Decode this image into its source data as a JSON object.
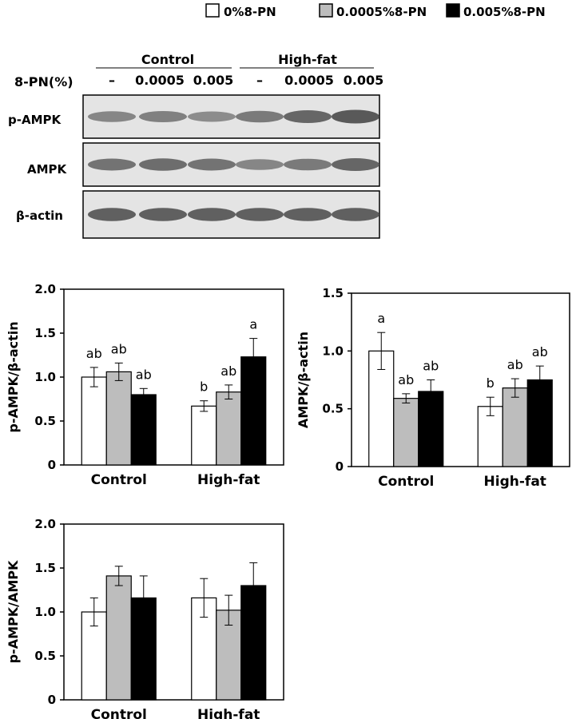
{
  "legend": {
    "items": [
      {
        "label": "0%8-PN",
        "color": "#ffffff"
      },
      {
        "label": "0.0005%8-PN",
        "color": "#bdbdbd"
      },
      {
        "label": "0.005%8-PN",
        "color": "#000000"
      }
    ]
  },
  "blot": {
    "group_headers": [
      "Control",
      "High-fat"
    ],
    "dose_label": "8-PN(%)",
    "doses": [
      "–",
      "0.0005",
      "0.005",
      "–",
      "0.0005",
      "0.005"
    ],
    "rows": [
      {
        "label": "p-AMPK",
        "band_intensity": [
          0.55,
          0.6,
          0.5,
          0.65,
          0.8,
          0.9
        ]
      },
      {
        "label": "AMPK",
        "band_intensity": [
          0.7,
          0.75,
          0.7,
          0.55,
          0.65,
          0.8
        ]
      },
      {
        "label": "β-actin",
        "band_intensity": [
          0.85,
          0.85,
          0.85,
          0.85,
          0.85,
          0.85
        ]
      }
    ]
  },
  "chart_data": [
    {
      "type": "bar",
      "categories": [
        "Control",
        "High-fat"
      ],
      "ylabel": "p-AMPK/β-actin",
      "ylim": [
        0,
        2.0
      ],
      "yticks": [
        "0",
        "0.5",
        "1.0",
        "1.5",
        "2.0"
      ],
      "series": [
        {
          "values": [
            1.0,
            0.67
          ],
          "errors": [
            0.11,
            0.06
          ],
          "sig": [
            "ab",
            "b"
          ]
        },
        {
          "values": [
            1.06,
            0.83
          ],
          "errors": [
            0.1,
            0.08
          ],
          "sig": [
            "ab",
            "ab"
          ]
        },
        {
          "values": [
            0.8,
            1.23
          ],
          "errors": [
            0.07,
            0.21
          ],
          "sig": [
            "ab",
            "a"
          ]
        }
      ]
    },
    {
      "type": "bar",
      "categories": [
        "Control",
        "High-fat"
      ],
      "ylabel": "AMPK/β-actin",
      "ylim": [
        0,
        1.5
      ],
      "yticks": [
        "0",
        "0.5",
        "1.0",
        "1.5"
      ],
      "series": [
        {
          "values": [
            1.0,
            0.52
          ],
          "errors": [
            0.16,
            0.08
          ],
          "sig": [
            "a",
            "b"
          ]
        },
        {
          "values": [
            0.59,
            0.68
          ],
          "errors": [
            0.04,
            0.08
          ],
          "sig": [
            "ab",
            "ab"
          ]
        },
        {
          "values": [
            0.65,
            0.75
          ],
          "errors": [
            0.1,
            0.12
          ],
          "sig": [
            "ab",
            "ab"
          ]
        }
      ]
    },
    {
      "type": "bar",
      "categories": [
        "Control",
        "High-fat"
      ],
      "ylabel": "p-AMPK/AMPK",
      "ylim": [
        0,
        2.0
      ],
      "yticks": [
        "0",
        "0.5",
        "1.0",
        "1.5",
        "2.0"
      ],
      "series": [
        {
          "values": [
            1.0,
            1.16
          ],
          "errors": [
            0.16,
            0.22
          ],
          "sig": [
            "",
            ""
          ]
        },
        {
          "values": [
            1.41,
            1.02
          ],
          "errors": [
            0.11,
            0.17
          ],
          "sig": [
            "",
            ""
          ]
        },
        {
          "values": [
            1.16,
            1.3
          ],
          "errors": [
            0.25,
            0.26
          ],
          "sig": [
            "",
            ""
          ]
        }
      ]
    }
  ]
}
